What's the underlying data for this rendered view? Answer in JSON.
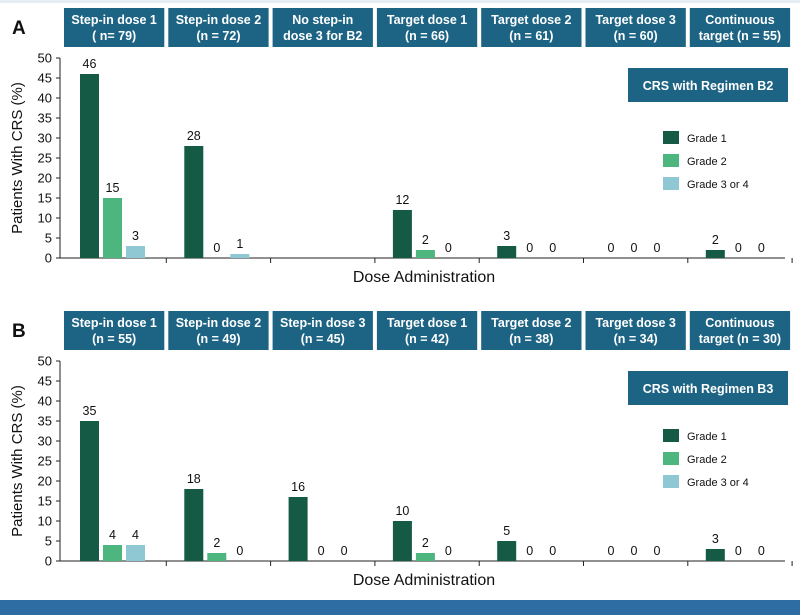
{
  "colors": {
    "grade1": "#145a45",
    "grade2": "#4db57e",
    "grade3": "#8fc8d3",
    "header_bg": "#1d6484",
    "header_text": "#ffffff",
    "band": "#2e6da4"
  },
  "chart_data": [
    {
      "type": "bar",
      "panel_label": "A",
      "title": "CRS with Regimen B2",
      "xlabel": "Dose Administration",
      "ylabel": "Patients With CRS (%)",
      "ylim": [
        0,
        50
      ],
      "yticks": [
        0,
        5,
        10,
        15,
        20,
        25,
        30,
        35,
        40,
        45,
        50
      ],
      "categories": [
        [
          "Step-in dose 1",
          "( n= 79)"
        ],
        [
          "Step-in dose 2",
          "(n = 72)"
        ],
        [
          "No step-in",
          "dose 3 for B2"
        ],
        [
          "Target dose 1",
          "(n = 66)"
        ],
        [
          "Target dose 2",
          "(n = 61)"
        ],
        [
          "Target dose 3",
          "(n = 60)"
        ],
        [
          "Continuous",
          "target (n = 55)"
        ]
      ],
      "series": [
        {
          "name": "Grade 1",
          "color_key": "grade1",
          "values": [
            46,
            28,
            null,
            12,
            3,
            0,
            2
          ]
        },
        {
          "name": "Grade 2",
          "color_key": "grade2",
          "values": [
            15,
            0,
            null,
            2,
            0,
            0,
            0
          ]
        },
        {
          "name": "Grade 3 or 4",
          "color_key": "grade3",
          "values": [
            3,
            1,
            null,
            0,
            0,
            0,
            0
          ]
        }
      ]
    },
    {
      "type": "bar",
      "panel_label": "B",
      "title": "CRS with Regimen B3",
      "xlabel": "Dose Administration",
      "ylabel": "Patients With CRS (%)",
      "ylim": [
        0,
        50
      ],
      "yticks": [
        0,
        5,
        10,
        15,
        20,
        25,
        30,
        35,
        40,
        45,
        50
      ],
      "categories": [
        [
          "Step-in dose 1",
          "(n = 55)"
        ],
        [
          "Step-in dose 2",
          "(n = 49)"
        ],
        [
          "Step-in dose 3",
          "(n = 45)"
        ],
        [
          "Target dose 1",
          "(n = 42)"
        ],
        [
          "Target dose 2",
          "(n = 38)"
        ],
        [
          "Target dose 3",
          "(n = 34)"
        ],
        [
          "Continuous",
          "target (n = 30)"
        ]
      ],
      "series": [
        {
          "name": "Grade 1",
          "color_key": "grade1",
          "values": [
            35,
            18,
            16,
            10,
            5,
            0,
            3
          ]
        },
        {
          "name": "Grade 2",
          "color_key": "grade2",
          "values": [
            4,
            2,
            0,
            2,
            0,
            0,
            0
          ]
        },
        {
          "name": "Grade 3 or 4",
          "color_key": "grade3",
          "values": [
            4,
            0,
            0,
            0,
            0,
            0,
            0
          ]
        }
      ]
    }
  ]
}
